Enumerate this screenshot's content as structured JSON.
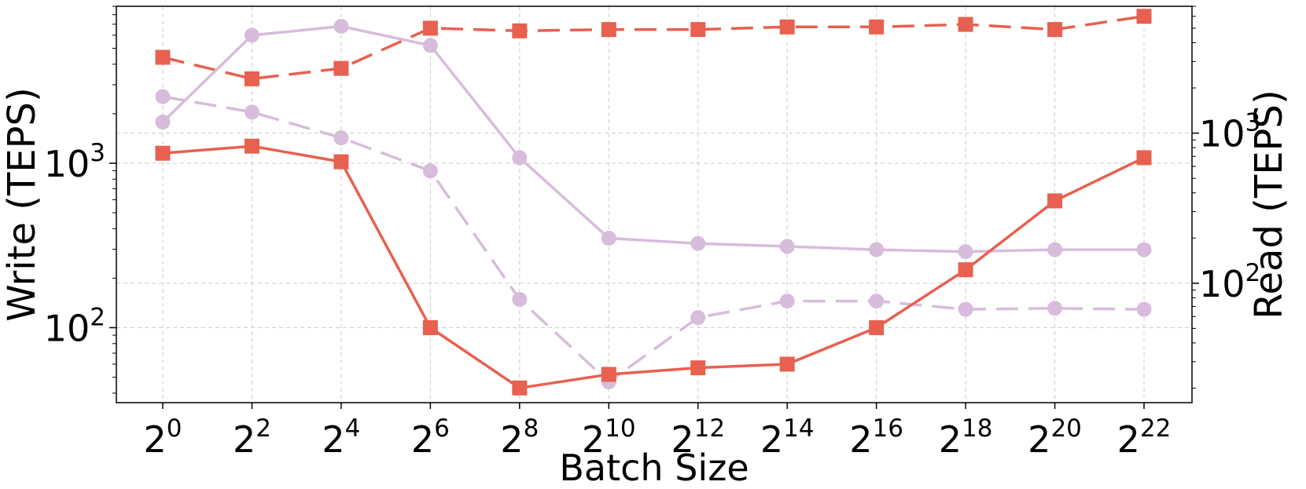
{
  "chart_data": {
    "type": "line",
    "xlabel": "Batch Size",
    "ylabel_left": "Write (TEPS)",
    "ylabel_right": "Read (TEPS)",
    "x_scale": "log2",
    "x_base": "2",
    "x_tick_exponents": [
      "0",
      "2",
      "4",
      "6",
      "8",
      "10",
      "12",
      "14",
      "16",
      "18",
      "20",
      "22"
    ],
    "x": [
      1,
      4,
      16,
      64,
      256,
      1024,
      4096,
      16384,
      65536,
      262144,
      1048576,
      4194304
    ],
    "y_left_scale": "log",
    "y_left_lim": [
      35,
      9000
    ],
    "y_left_ticks": [
      {
        "base": "10",
        "exp": "2",
        "value": 100
      },
      {
        "base": "10",
        "exp": "3",
        "value": 1000
      }
    ],
    "y_right_scale": "log",
    "y_right_lim": [
      16,
      7000
    ],
    "y_right_ticks": [
      {
        "base": "10",
        "exp": "2",
        "value": 100
      },
      {
        "base": "10",
        "exp": "3",
        "value": 1000
      }
    ],
    "grid": true,
    "series": [
      {
        "axis": "left",
        "color": "#e8604f",
        "dash": "solid",
        "marker": "square",
        "values": [
          1150,
          1270,
          1020,
          100,
          43,
          52,
          57,
          60,
          100,
          225,
          590,
          1080
        ]
      },
      {
        "axis": "left",
        "color": "#d7bcdb",
        "dash": "solid",
        "marker": "circle",
        "values": [
          1780,
          6000,
          6800,
          5200,
          1080,
          350,
          325,
          312,
          298,
          290,
          298,
          298
        ]
      },
      {
        "axis": "right",
        "color": "#e8604f",
        "dash": "dashed",
        "marker": "square",
        "values": [
          3200,
          2300,
          2700,
          5000,
          4800,
          4900,
          4900,
          5100,
          5100,
          5300,
          4900,
          6000
        ]
      },
      {
        "axis": "right",
        "color": "#d7bcdb",
        "dash": "dashed",
        "marker": "circle",
        "values": [
          1750,
          1380,
          930,
          560,
          78,
          22,
          59,
          76,
          76,
          67,
          68,
          67
        ]
      }
    ]
  }
}
